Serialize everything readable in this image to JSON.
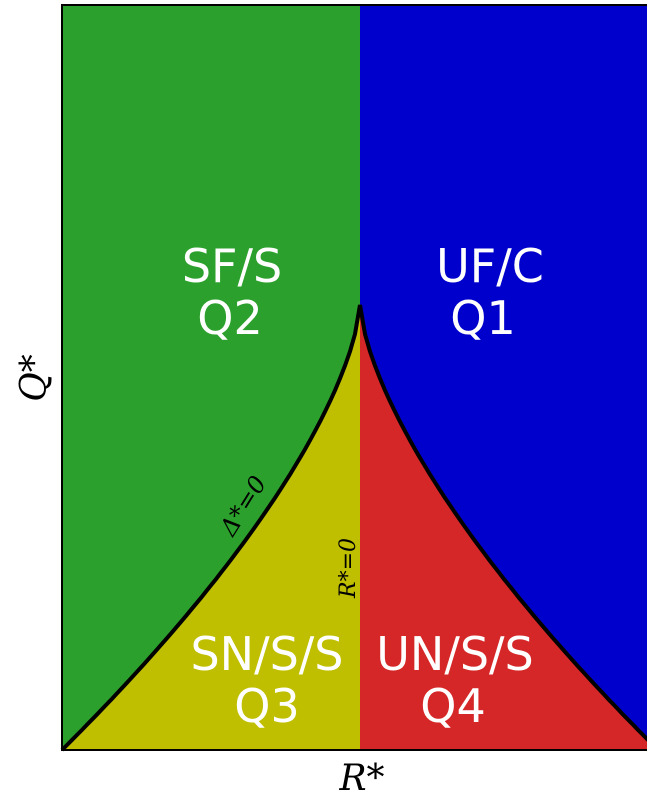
{
  "regions": [
    {
      "label": "SF/S",
      "quadrant": "Q2"
    },
    {
      "label": "UF/C",
      "quadrant": "Q1"
    },
    {
      "label": "SN/S/S",
      "quadrant": "Q3"
    },
    {
      "label": "UN/S/S",
      "quadrant": "Q4"
    }
  ],
  "curves": {
    "discriminant": "Δ*=0",
    "vertical": "R*=0"
  },
  "axes": {
    "x": "R*",
    "y": "Q*"
  }
}
